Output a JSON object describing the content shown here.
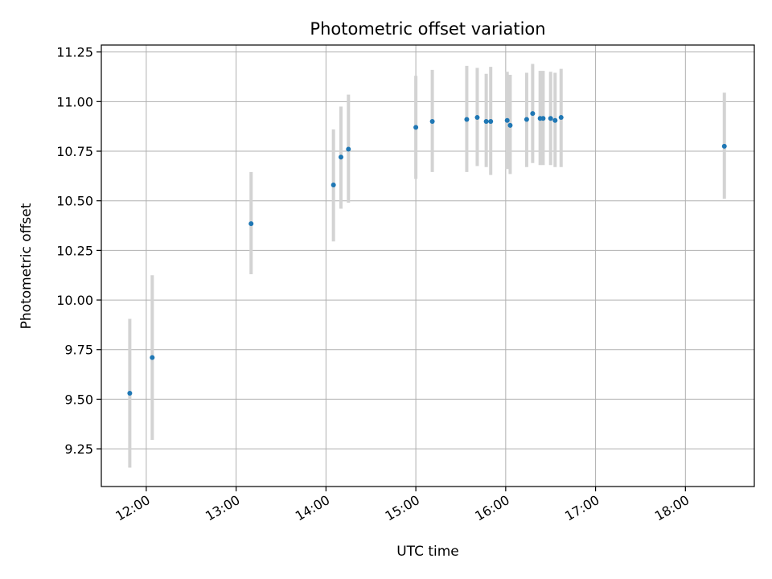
{
  "chart_data": {
    "type": "scatter",
    "title": "Photometric offset variation",
    "xlabel": "UTC time",
    "ylabel": "Photometric offset",
    "xlim": [
      "11:30",
      "18:46"
    ],
    "ylim": [
      9.06,
      11.285
    ],
    "x_ticks": [
      "12:00",
      "13:00",
      "14:00",
      "15:00",
      "16:00",
      "17:00",
      "18:00"
    ],
    "y_ticks": [
      "9.25",
      "9.50",
      "9.75",
      "10.00",
      "10.25",
      "10.50",
      "10.75",
      "11.00",
      "11.25"
    ],
    "grid": true,
    "colors": {
      "point": "#1f77b4",
      "error_bar": "#d3d3d3",
      "grid": "#b0b0b0",
      "axis": "#000000"
    },
    "points": [
      {
        "t": "11:49",
        "y": 9.53,
        "lo": 9.155,
        "hi": 9.905
      },
      {
        "t": "12:04",
        "y": 9.71,
        "lo": 9.295,
        "hi": 10.125
      },
      {
        "t": "13:10",
        "y": 10.385,
        "lo": 10.13,
        "hi": 10.645
      },
      {
        "t": "14:05",
        "y": 10.58,
        "lo": 10.295,
        "hi": 10.86
      },
      {
        "t": "14:10",
        "y": 10.72,
        "lo": 10.46,
        "hi": 10.975
      },
      {
        "t": "14:15",
        "y": 10.76,
        "lo": 10.49,
        "hi": 11.035
      },
      {
        "t": "15:00",
        "y": 10.87,
        "lo": 10.61,
        "hi": 11.13
      },
      {
        "t": "15:11",
        "y": 10.9,
        "lo": 10.645,
        "hi": 11.16
      },
      {
        "t": "15:34",
        "y": 10.91,
        "lo": 10.645,
        "hi": 11.18
      },
      {
        "t": "15:41",
        "y": 10.92,
        "lo": 10.675,
        "hi": 11.17
      },
      {
        "t": "15:47",
        "y": 10.9,
        "lo": 10.67,
        "hi": 11.14
      },
      {
        "t": "15:50",
        "y": 10.9,
        "lo": 10.63,
        "hi": 11.175
      },
      {
        "t": "16:01",
        "y": 10.905,
        "lo": 10.66,
        "hi": 11.15
      },
      {
        "t": "16:03",
        "y": 10.88,
        "lo": 10.635,
        "hi": 11.135
      },
      {
        "t": "16:14",
        "y": 10.91,
        "lo": 10.67,
        "hi": 11.145
      },
      {
        "t": "16:18",
        "y": 10.94,
        "lo": 10.69,
        "hi": 11.19
      },
      {
        "t": "16:23",
        "y": 10.915,
        "lo": 10.68,
        "hi": 11.155
      },
      {
        "t": "16:25",
        "y": 10.915,
        "lo": 10.68,
        "hi": 11.155
      },
      {
        "t": "16:30",
        "y": 10.915,
        "lo": 10.68,
        "hi": 11.15
      },
      {
        "t": "16:33",
        "y": 10.905,
        "lo": 10.67,
        "hi": 11.145
      },
      {
        "t": "16:37",
        "y": 10.92,
        "lo": 10.67,
        "hi": 11.165
      },
      {
        "t": "18:26",
        "y": 10.775,
        "lo": 10.51,
        "hi": 11.045
      }
    ]
  }
}
